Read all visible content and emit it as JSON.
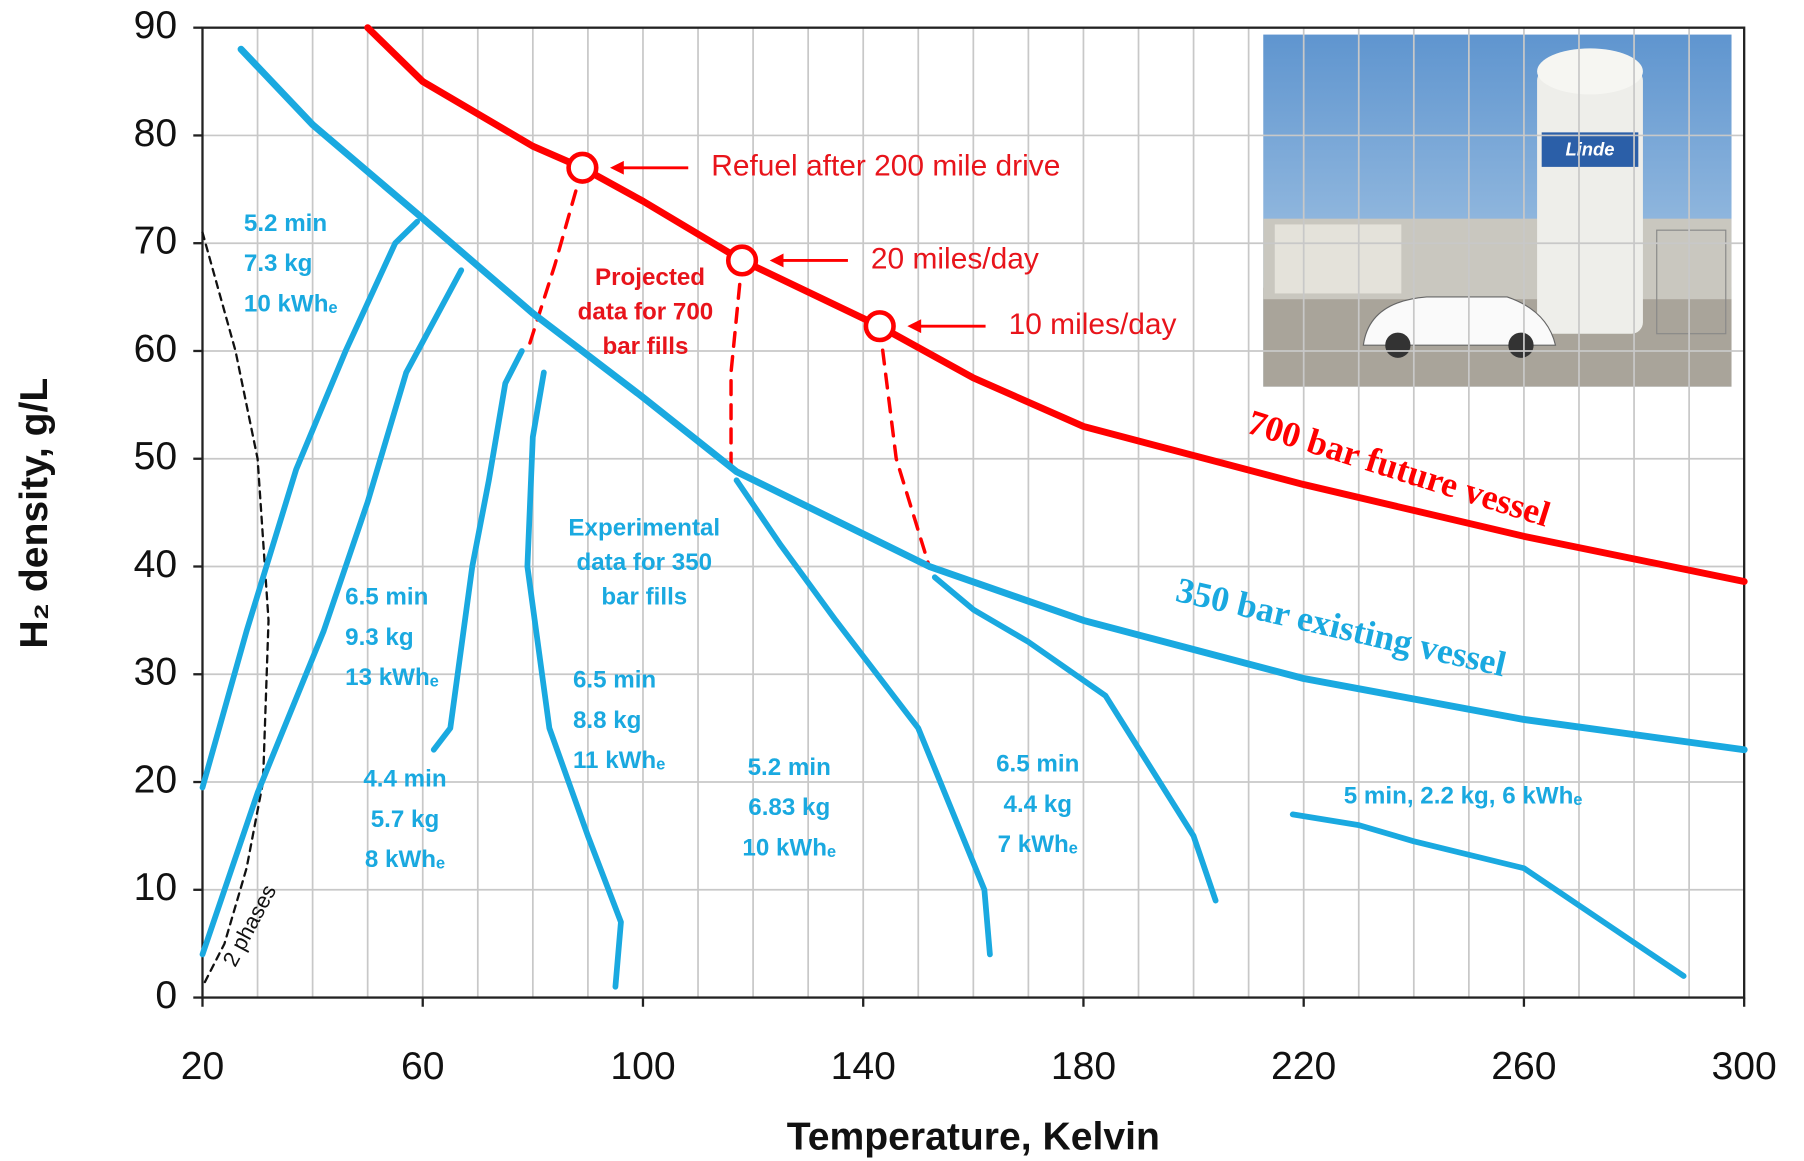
{
  "chart_data": {
    "type": "line",
    "x_label": "Temperature, Kelvin",
    "y_label": "H₂ density, g/L",
    "xlim": [
      20,
      300
    ],
    "ylim": [
      0,
      90
    ],
    "xticks": [
      20,
      60,
      100,
      140,
      180,
      220,
      260,
      300
    ],
    "yticks": [
      0,
      10,
      20,
      30,
      40,
      50,
      60,
      70,
      80,
      90
    ],
    "xgrid": [
      30,
      40,
      50,
      70,
      80,
      90,
      110,
      120,
      130,
      150,
      160,
      170,
      190,
      200,
      210,
      230,
      240,
      250,
      270,
      280,
      290
    ],
    "grid": true,
    "series": [
      {
        "name": "700 bar future vessel",
        "color": "#ff0000",
        "x": [
          50,
          60,
          80,
          89,
          100,
          118,
          143,
          160,
          180,
          220,
          260,
          300
        ],
        "values": [
          90,
          85,
          79,
          77,
          73.9,
          68.4,
          62.3,
          57.5,
          53,
          47.6,
          42.8,
          38.6
        ]
      },
      {
        "name": "350 bar existing vessel",
        "color": "#1aa9e0",
        "x": [
          27,
          40,
          60,
          80,
          100,
          117,
          152,
          180,
          220,
          260,
          300
        ],
        "values": [
          88,
          81,
          72.3,
          63.5,
          55.7,
          48.8,
          40,
          35,
          29.6,
          25.8,
          23
        ]
      }
    ],
    "fills": [
      {
        "label": [
          "5.2 min",
          "7.3 kg",
          "10 kWhₑ"
        ],
        "x": [
          20,
          28,
          37,
          46,
          55,
          59
        ],
        "values": [
          19.5,
          34,
          49,
          60,
          70,
          72
        ]
      },
      {
        "label": [
          "6.5 min",
          "9.3 kg",
          "13 kWhₑ"
        ],
        "x": [
          20,
          30,
          42,
          50,
          57,
          67
        ],
        "values": [
          4,
          19,
          34,
          46,
          58,
          67.5
        ]
      },
      {
        "label": [
          "4.4 min",
          "5.7 kg",
          "8 kWhₑ"
        ],
        "x": [
          62,
          65,
          69,
          72,
          75,
          78
        ],
        "values": [
          23,
          25,
          40,
          48,
          57,
          60
        ]
      },
      {
        "label": [
          "6.5 min",
          "8.8 kg",
          "11 kWhₑ"
        ],
        "x": [
          95,
          96,
          90,
          83,
          79,
          80,
          82
        ],
        "values": [
          1,
          7,
          15,
          25,
          40,
          52,
          58
        ]
      },
      {
        "label": [
          "5.2 min",
          "6.83 kg",
          "10 kWhₑ"
        ],
        "x": [
          163,
          162,
          150,
          135,
          125,
          117
        ],
        "values": [
          4,
          10,
          25,
          35,
          42,
          48
        ]
      },
      {
        "label": [
          "6.5 min",
          "4.4 kg",
          "7 kWhₑ"
        ],
        "x": [
          204,
          200,
          184,
          170,
          160,
          153
        ],
        "values": [
          9,
          15,
          28,
          33,
          36,
          39
        ]
      },
      {
        "label": [
          "5 min, 2.2 kg, 6 kWhₑ"
        ],
        "x": [
          289,
          260,
          240,
          230,
          218
        ],
        "values": [
          2,
          12,
          14.5,
          16,
          17
        ]
      }
    ],
    "fill_color": "#1aa9e0",
    "projected": [
      {
        "x": [
          89,
          84,
          79
        ],
        "values": [
          77,
          68,
          60
        ]
      },
      {
        "x": [
          118,
          116,
          116
        ],
        "values": [
          68.4,
          58,
          49
        ]
      },
      {
        "x": [
          143,
          146,
          152
        ],
        "values": [
          62.3,
          50,
          40
        ]
      }
    ],
    "phase": {
      "label": "2 phases",
      "x": [
        20,
        26,
        30,
        32,
        31,
        28,
        24,
        20
      ],
      "values": [
        71,
        60,
        50,
        35,
        20,
        12,
        5,
        1
      ]
    },
    "markers": {
      "x": [
        89,
        118,
        143
      ],
      "values": [
        77,
        68.4,
        62.3
      ],
      "labels": [
        "Refuel after 200 mile drive",
        "20 miles/day",
        "10 miles/day"
      ]
    },
    "projected_label": [
      "Projected",
      "data for 700",
      "bar fills"
    ],
    "experimental_label": [
      "Experimental",
      "data for 350",
      "bar fills"
    ],
    "photo_text": "Linde"
  }
}
